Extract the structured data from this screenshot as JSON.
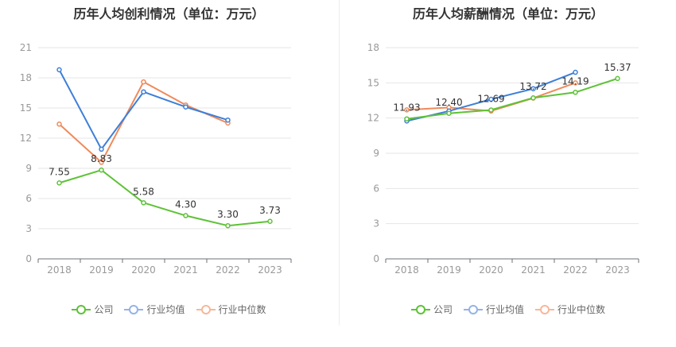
{
  "colors": {
    "company": "#5ec237",
    "industry_avg": "#3d7fd9",
    "industry_median": "#ef8a5a",
    "legend_avg": "#95b3e6",
    "legend_median": "#f5b89b"
  },
  "legend": {
    "company": "公司",
    "industry_avg": "行业均值",
    "industry_median": "行业中位数"
  },
  "chart_data": [
    {
      "type": "line",
      "title": "历年人均创利情况（单位：万元）",
      "categories": [
        "2018",
        "2019",
        "2020",
        "2021",
        "2022",
        "2023"
      ],
      "ylim": [
        0,
        21
      ],
      "yticks": [
        "0",
        "3",
        "6",
        "9",
        "12",
        "15",
        "18",
        "21"
      ],
      "grid": true,
      "legend_position": "bottom",
      "series": [
        {
          "name": "公司",
          "values": [
            7.55,
            8.83,
            5.58,
            4.3,
            3.3,
            3.73
          ],
          "labels": [
            "7.55",
            "8.83",
            "5.58",
            "4.30",
            "3.30",
            "3.73"
          ]
        },
        {
          "name": "行业均值",
          "values": [
            18.8,
            10.9,
            16.6,
            15.1,
            13.8,
            null
          ]
        },
        {
          "name": "行业中位数",
          "values": [
            13.4,
            9.6,
            17.6,
            15.3,
            13.5,
            null
          ]
        }
      ]
    },
    {
      "type": "line",
      "title": "历年人均薪酬情况（单位：万元）",
      "categories": [
        "2018",
        "2019",
        "2020",
        "2021",
        "2022",
        "2023"
      ],
      "ylim": [
        0,
        18
      ],
      "yticks": [
        "0",
        "3",
        "6",
        "9",
        "12",
        "15",
        "18"
      ],
      "grid": true,
      "legend_position": "bottom",
      "series": [
        {
          "name": "公司",
          "values": [
            11.93,
            12.4,
            12.69,
            13.72,
            14.19,
            15.37
          ],
          "labels": [
            "11.93",
            "12.40",
            "12.69",
            "13.72",
            "14.19",
            "15.37"
          ]
        },
        {
          "name": "行业均值",
          "values": [
            11.75,
            12.6,
            13.6,
            14.5,
            15.9,
            null
          ]
        },
        {
          "name": "行业中位数",
          "values": [
            12.7,
            12.9,
            12.6,
            13.7,
            15.0,
            null
          ]
        }
      ]
    }
  ]
}
